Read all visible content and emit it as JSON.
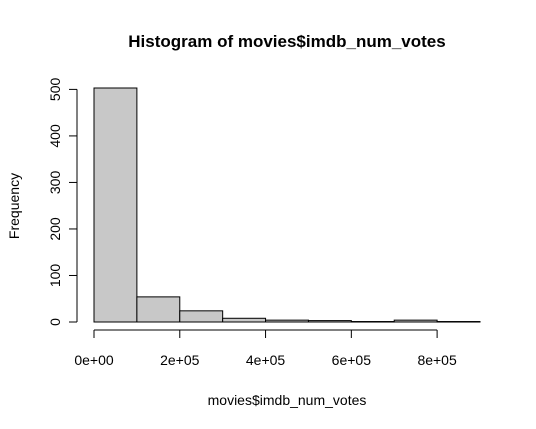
{
  "chart_data": {
    "type": "bar",
    "title": "Histogram of movies$imdb_num_votes",
    "xlabel": "movies$imdb_num_votes",
    "ylabel": "Frequency",
    "bins": [
      {
        "from": 0,
        "to": 100000,
        "count": 503
      },
      {
        "from": 100000,
        "to": 200000,
        "count": 54
      },
      {
        "from": 200000,
        "to": 300000,
        "count": 24
      },
      {
        "from": 300000,
        "to": 400000,
        "count": 8
      },
      {
        "from": 400000,
        "to": 500000,
        "count": 4
      },
      {
        "from": 500000,
        "to": 600000,
        "count": 3
      },
      {
        "from": 600000,
        "to": 700000,
        "count": 1
      },
      {
        "from": 700000,
        "to": 800000,
        "count": 4
      },
      {
        "from": 800000,
        "to": 900000,
        "count": 1
      }
    ],
    "x_ticks": [
      {
        "value": 0,
        "label": "0e+00"
      },
      {
        "value": 200000,
        "label": "2e+05"
      },
      {
        "value": 400000,
        "label": "4e+05"
      },
      {
        "value": 600000,
        "label": "6e+05"
      },
      {
        "value": 800000,
        "label": "8e+05"
      }
    ],
    "y_ticks": [
      {
        "value": 0,
        "label": "0"
      },
      {
        "value": 100,
        "label": "100"
      },
      {
        "value": 200,
        "label": "200"
      },
      {
        "value": 300,
        "label": "300"
      },
      {
        "value": 400,
        "label": "400"
      },
      {
        "value": 500,
        "label": "500"
      }
    ],
    "xlim": [
      0,
      900000
    ],
    "ylim": [
      0,
      503
    ],
    "bar_fill": "#c8c8c8",
    "bar_stroke": "#000000",
    "grid": false,
    "legend": "none"
  }
}
